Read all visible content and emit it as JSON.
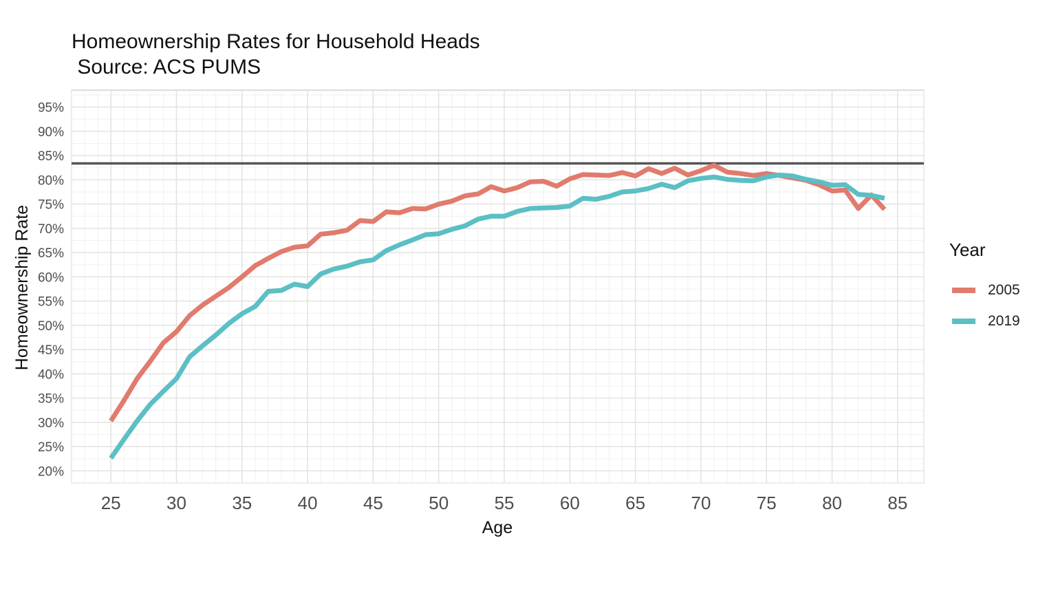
{
  "chart_data": {
    "type": "line",
    "title": "Homeownership Rates for Household Heads",
    "subtitle": " Source: ACS PUMS",
    "xlabel": "Age",
    "ylabel": "Homeownership Rate",
    "xlim": [
      22,
      87
    ],
    "ylim": [
      17.5,
      98.5
    ],
    "x_ticks": [
      25,
      30,
      35,
      40,
      45,
      50,
      55,
      60,
      65,
      70,
      75,
      80,
      85
    ],
    "y_ticks": [
      20,
      25,
      30,
      35,
      40,
      45,
      50,
      55,
      60,
      65,
      70,
      75,
      80,
      85,
      90,
      95
    ],
    "y_tick_labels": [
      "20%",
      "25%",
      "30%",
      "35%",
      "40%",
      "45%",
      "50%",
      "55%",
      "60%",
      "65%",
      "70%",
      "75%",
      "80%",
      "85%",
      "90%",
      "95%"
    ],
    "hline": 83.4,
    "grid": true,
    "legend_title": "Year",
    "legend_position": "right",
    "x": [
      25,
      26,
      27,
      28,
      29,
      30,
      31,
      32,
      33,
      34,
      35,
      36,
      37,
      38,
      39,
      40,
      41,
      42,
      43,
      44,
      45,
      46,
      47,
      48,
      49,
      50,
      51,
      52,
      53,
      54,
      55,
      56,
      57,
      58,
      59,
      60,
      61,
      62,
      63,
      64,
      65,
      66,
      67,
      68,
      69,
      70,
      71,
      72,
      73,
      74,
      75,
      76,
      77,
      78,
      79,
      80,
      81,
      82,
      83,
      84
    ],
    "series": [
      {
        "name": "2005",
        "color": "#E07B6E",
        "values": [
          30.3,
          34.5,
          39.0,
          42.6,
          46.4,
          48.7,
          52.0,
          54.2,
          56.0,
          57.8,
          60.0,
          62.3,
          63.8,
          65.2,
          66.1,
          66.4,
          68.8,
          69.1,
          69.6,
          71.6,
          71.4,
          73.4,
          73.2,
          74.1,
          74.0,
          75.0,
          75.6,
          76.7,
          77.1,
          78.6,
          77.7,
          78.4,
          79.6,
          79.7,
          78.7,
          80.2,
          81.1,
          81.0,
          80.9,
          81.5,
          80.8,
          82.3,
          81.3,
          82.4,
          81.0,
          81.9,
          83.0,
          81.6,
          81.3,
          80.9,
          81.3,
          80.9,
          80.4,
          79.9,
          79.0,
          77.7,
          77.9,
          74.1,
          76.9,
          73.9
        ]
      },
      {
        "name": "2019",
        "color": "#5BBFC4",
        "values": [
          22.6,
          26.5,
          30.3,
          33.7,
          36.4,
          39.0,
          43.5,
          45.8,
          48.0,
          50.4,
          52.4,
          53.9,
          57.0,
          57.2,
          58.5,
          58.0,
          60.6,
          61.6,
          62.2,
          63.1,
          63.5,
          65.4,
          66.6,
          67.6,
          68.7,
          68.9,
          69.8,
          70.5,
          71.9,
          72.5,
          72.5,
          73.5,
          74.1,
          74.2,
          74.3,
          74.6,
          76.2,
          76.0,
          76.6,
          77.5,
          77.7,
          78.2,
          79.1,
          78.4,
          79.8,
          80.3,
          80.6,
          80.1,
          79.9,
          79.8,
          80.6,
          81.0,
          80.8,
          80.1,
          79.6,
          78.9,
          79.0,
          77.0,
          76.8,
          76.2
        ]
      }
    ]
  }
}
